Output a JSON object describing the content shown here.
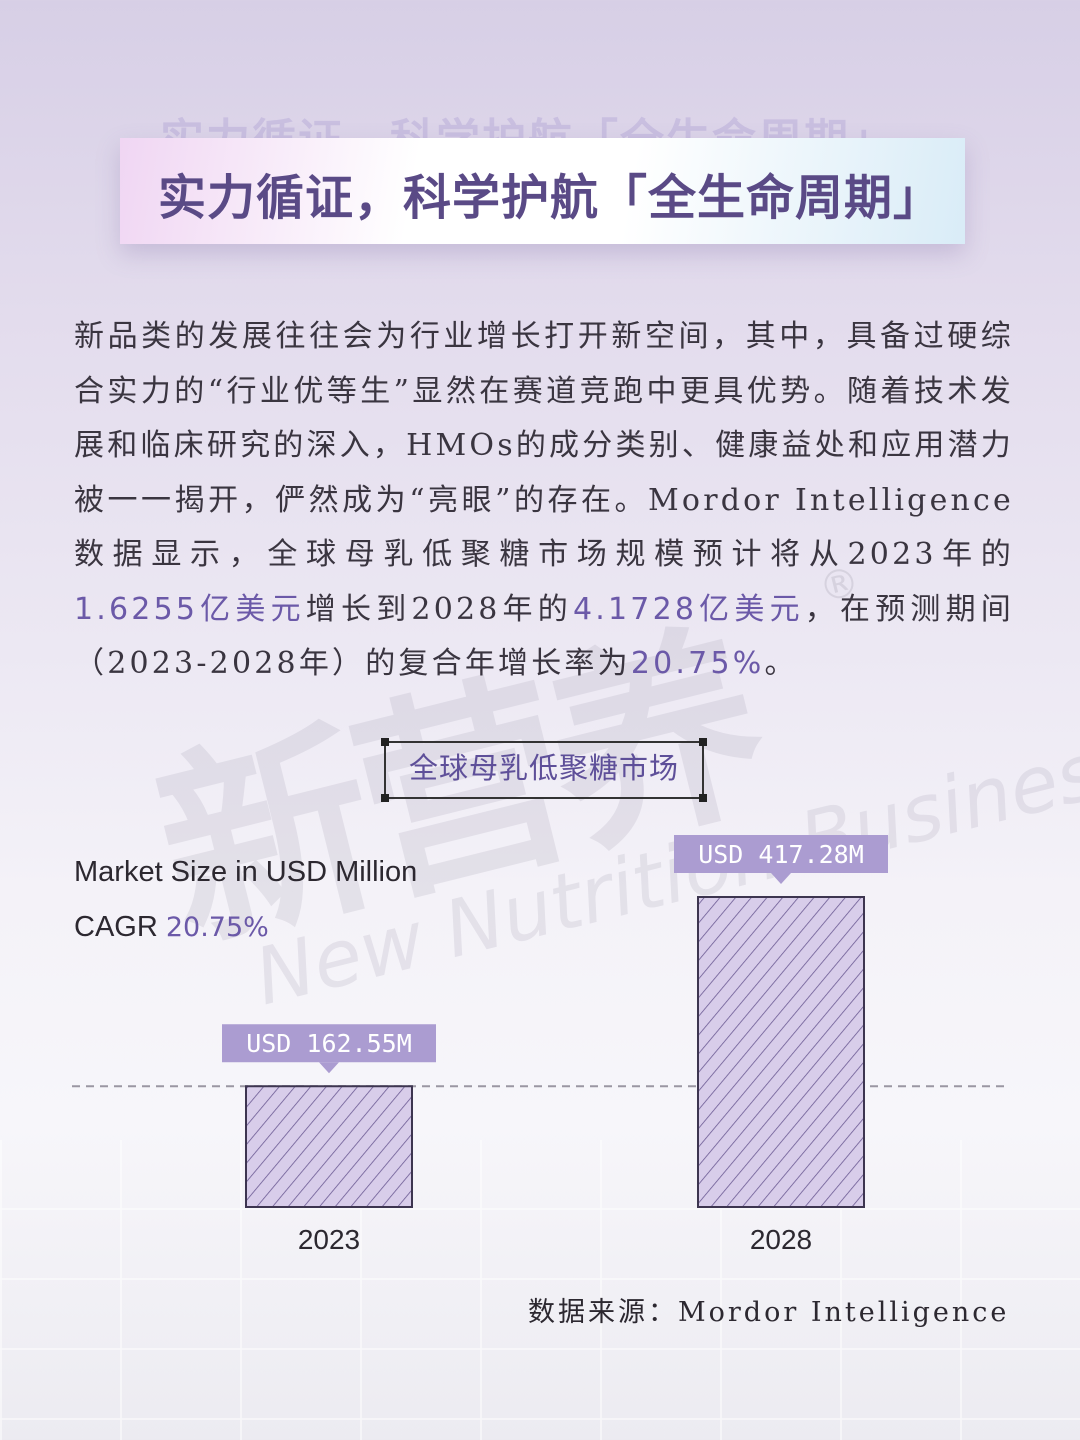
{
  "title": "实力循证，科学护航「全生命周期」",
  "body": {
    "segments": [
      {
        "text": "新品类的发展往往会为行业增长打开新空间，其中，具备过硬综合实力的“行业优等生”显然在赛道竞跑中更具优势。随着技术发展和临床研究的深入，HMOs的成分类别、健康益处和应用潜力被一一揭开，俨然成为“亮眼”的存在。Mordor Intelligence数据显示，全球母乳低聚糖市场规模预计将从2023年的"
      },
      {
        "text": "1.6255亿美元",
        "highlight": true
      },
      {
        "text": "增长到2028年的"
      },
      {
        "text": "4.1728亿美元",
        "highlight": true
      },
      {
        "text": "，在预测期间（2023-2028年）的复合年增长率为"
      },
      {
        "text": "20.75%",
        "highlight": true
      },
      {
        "text": "。"
      }
    ]
  },
  "watermark": {
    "big": "新营养",
    "small": "New Nutrition Business",
    "reg": "®"
  },
  "chart_title": "全球母乳低聚糖市场",
  "market_size_label": "Market Size in USD Million",
  "cagr_label": "CAGR",
  "cagr_value": "20.75%",
  "source": "数据来源：Mordor Intelligence",
  "colors": {
    "accent": "#6b59a8",
    "bar_fill": "#d8cdea",
    "bar_hatch": "#6b5a93",
    "callout": "#ab9cd1"
  },
  "chart_data": {
    "type": "bar",
    "categories": [
      "2023",
      "2028"
    ],
    "values": [
      162.55,
      417.28
    ],
    "data_labels": [
      "USD 162.55M",
      "USD 417.28M"
    ],
    "title": "全球母乳低聚糖市场",
    "ylabel": "Market Size in USD Million",
    "baseline_dashed": true
  }
}
